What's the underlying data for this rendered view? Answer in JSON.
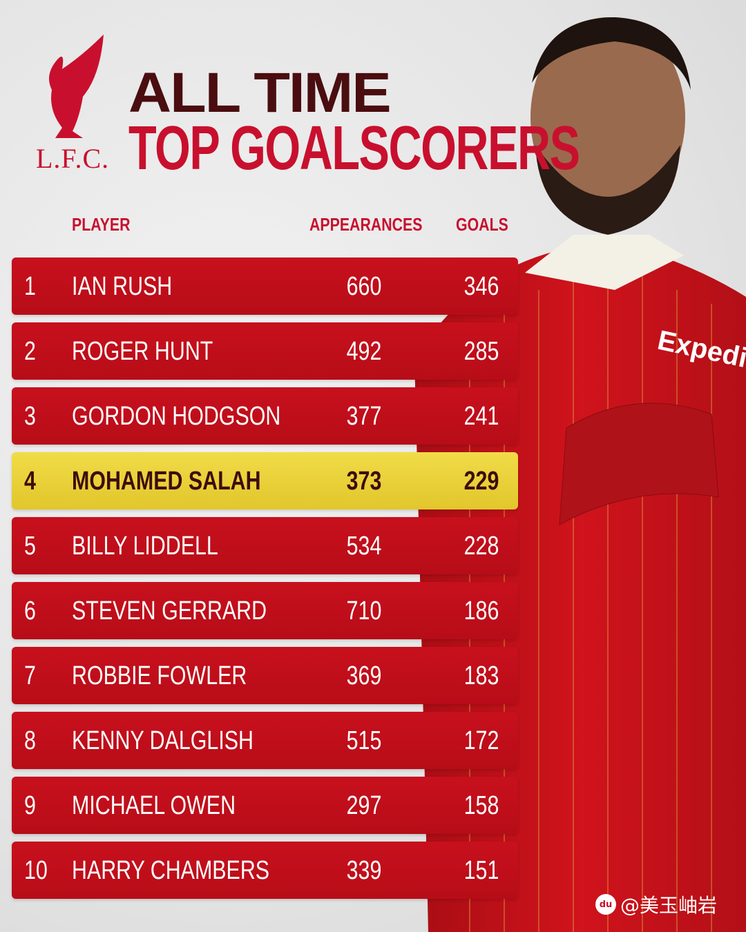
{
  "logo": {
    "text": "L.F.C."
  },
  "title": {
    "line1": "ALL TIME",
    "line2": "TOP GOALSCORERS"
  },
  "columns": {
    "player": "PLAYER",
    "appearances": "APPEARANCES",
    "goals": "GOALS"
  },
  "rows": [
    {
      "rank": "1",
      "name": "IAN RUSH",
      "appearances": "660",
      "goals": "346"
    },
    {
      "rank": "2",
      "name": "ROGER HUNT",
      "appearances": "492",
      "goals": "285"
    },
    {
      "rank": "3",
      "name": "GORDON HODGSON",
      "appearances": "377",
      "goals": "241"
    },
    {
      "rank": "4",
      "name": "MOHAMED SALAH",
      "appearances": "373",
      "goals": "229",
      "highlighted": true
    },
    {
      "rank": "5",
      "name": "BILLY LIDDELL",
      "appearances": "534",
      "goals": "228"
    },
    {
      "rank": "6",
      "name": "STEVEN GERRARD",
      "appearances": "710",
      "goals": "186"
    },
    {
      "rank": "7",
      "name": "ROBBIE FOWLER",
      "appearances": "369",
      "goals": "183"
    },
    {
      "rank": "8",
      "name": "KENNY DALGLISH",
      "appearances": "515",
      "goals": "172"
    },
    {
      "rank": "9",
      "name": "MICHAEL OWEN",
      "appearances": "297",
      "goals": "158"
    },
    {
      "rank": "10",
      "name": "HARRY CHAMBERS",
      "appearances": "339",
      "goals": "151"
    }
  ],
  "shirt_sponsor": "Expedia",
  "watermark": {
    "icon": "baidu-paw-icon",
    "text": "@美玉岫岩"
  },
  "colors": {
    "red": "#c8101d",
    "highlight": "#e8cd3a",
    "dark": "#4a0d10"
  }
}
